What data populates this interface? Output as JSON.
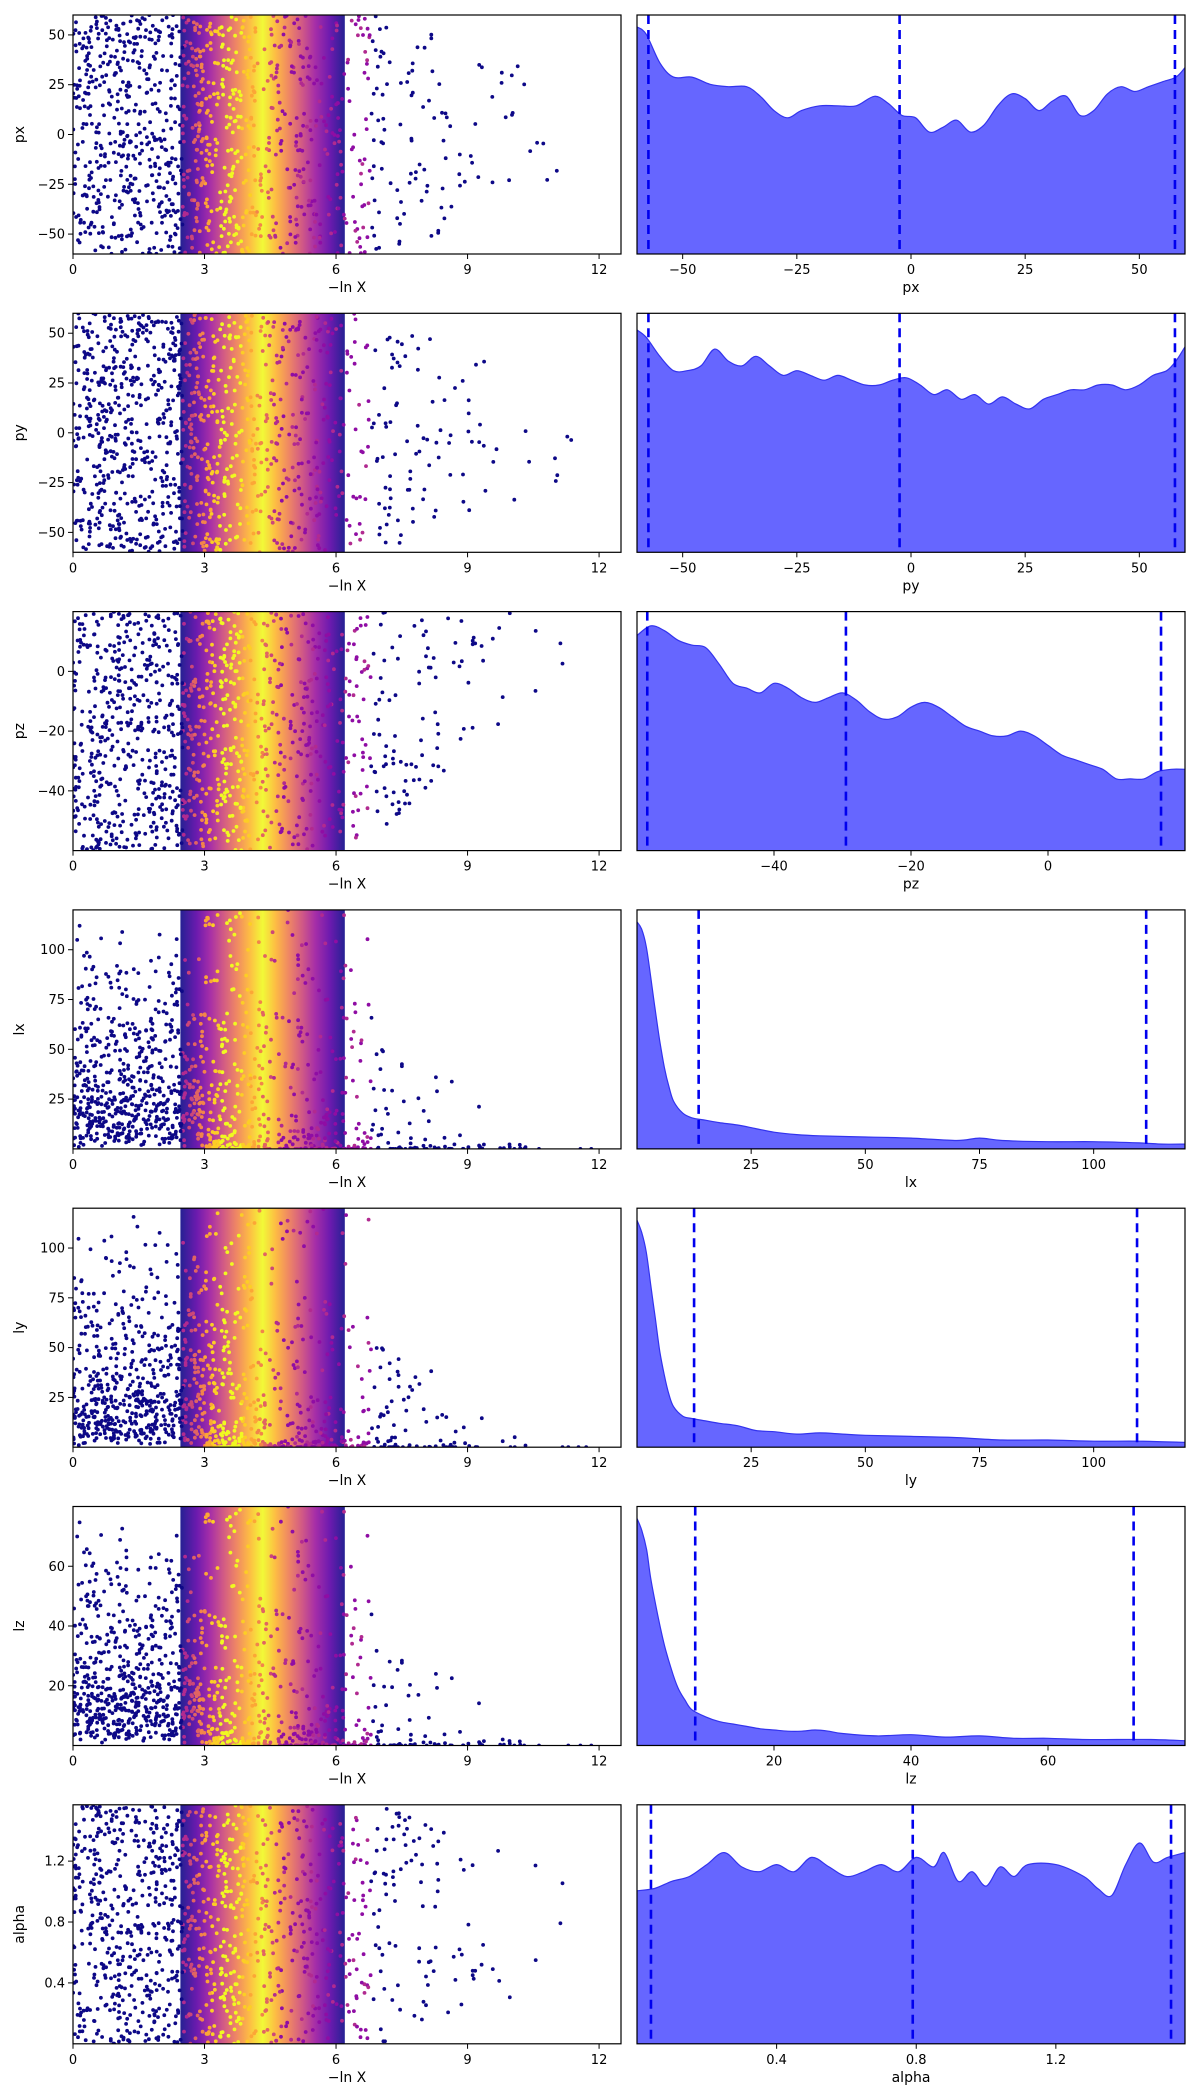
{
  "chart_data": [
    {
      "type": "trace_panel_row",
      "param": "px",
      "trace": {
        "xlabel": "−ln X",
        "ylabel": "px",
        "xlim": [
          0,
          12.5
        ],
        "ylim": [
          -60,
          60
        ],
        "xticks": [
          0,
          3,
          6,
          9,
          12
        ],
        "yticks": [
          -50,
          -25,
          0,
          25,
          50
        ]
      },
      "posterior": {
        "xlabel": "px",
        "xlim": [
          -60,
          60
        ],
        "xticks": [
          -50,
          -25,
          0,
          25,
          50
        ],
        "quantiles": [
          -57.5,
          -2.5,
          57.8
        ],
        "density": [
          [
            -60,
            0.95
          ],
          [
            -58,
            0.92
          ],
          [
            -55,
            0.8
          ],
          [
            -52,
            0.74
          ],
          [
            -48,
            0.74
          ],
          [
            -44,
            0.71
          ],
          [
            -40,
            0.7
          ],
          [
            -36,
            0.7
          ],
          [
            -33,
            0.66
          ],
          [
            -30,
            0.6
          ],
          [
            -27,
            0.57
          ],
          [
            -24,
            0.6
          ],
          [
            -20,
            0.62
          ],
          [
            -16,
            0.62
          ],
          [
            -12,
            0.62
          ],
          [
            -8,
            0.66
          ],
          [
            -5,
            0.63
          ],
          [
            -2,
            0.58
          ],
          [
            1,
            0.57
          ],
          [
            4,
            0.51
          ],
          [
            7,
            0.53
          ],
          [
            10,
            0.56
          ],
          [
            13,
            0.51
          ],
          [
            16,
            0.54
          ],
          [
            19,
            0.62
          ],
          [
            22,
            0.67
          ],
          [
            25,
            0.65
          ],
          [
            28,
            0.6
          ],
          [
            31,
            0.64
          ],
          [
            34,
            0.66
          ],
          [
            37,
            0.58
          ],
          [
            40,
            0.6
          ],
          [
            43,
            0.67
          ],
          [
            46,
            0.7
          ],
          [
            49,
            0.68
          ],
          [
            52,
            0.7
          ],
          [
            55,
            0.72
          ],
          [
            58,
            0.74
          ],
          [
            60,
            0.78
          ]
        ]
      }
    },
    {
      "type": "trace_panel_row",
      "param": "py",
      "trace": {
        "xlabel": "−ln X",
        "ylabel": "py",
        "xlim": [
          0,
          12.5
        ],
        "ylim": [
          -60,
          60
        ],
        "xticks": [
          0,
          3,
          6,
          9,
          12
        ],
        "yticks": [
          -50,
          -25,
          0,
          25,
          50
        ]
      },
      "posterior": {
        "xlabel": "py",
        "xlim": [
          -60,
          60
        ],
        "xticks": [
          -50,
          -25,
          0,
          25,
          50
        ],
        "quantiles": [
          -57.5,
          -2.5,
          57.8
        ],
        "density": [
          [
            -60,
            0.93
          ],
          [
            -58,
            0.9
          ],
          [
            -55,
            0.82
          ],
          [
            -52,
            0.76
          ],
          [
            -49,
            0.76
          ],
          [
            -46,
            0.78
          ],
          [
            -43,
            0.85
          ],
          [
            -40,
            0.8
          ],
          [
            -37,
            0.78
          ],
          [
            -34,
            0.82
          ],
          [
            -31,
            0.78
          ],
          [
            -28,
            0.74
          ],
          [
            -25,
            0.76
          ],
          [
            -22,
            0.74
          ],
          [
            -19,
            0.72
          ],
          [
            -16,
            0.74
          ],
          [
            -13,
            0.72
          ],
          [
            -10,
            0.7
          ],
          [
            -7,
            0.7
          ],
          [
            -4,
            0.72
          ],
          [
            -1,
            0.73
          ],
          [
            2,
            0.7
          ],
          [
            5,
            0.66
          ],
          [
            8,
            0.68
          ],
          [
            11,
            0.64
          ],
          [
            14,
            0.66
          ],
          [
            17,
            0.62
          ],
          [
            20,
            0.65
          ],
          [
            23,
            0.62
          ],
          [
            26,
            0.6
          ],
          [
            29,
            0.64
          ],
          [
            32,
            0.66
          ],
          [
            35,
            0.68
          ],
          [
            38,
            0.68
          ],
          [
            41,
            0.7
          ],
          [
            44,
            0.7
          ],
          [
            47,
            0.68
          ],
          [
            50,
            0.7
          ],
          [
            53,
            0.74
          ],
          [
            56,
            0.76
          ],
          [
            58,
            0.8
          ],
          [
            60,
            0.86
          ]
        ]
      }
    },
    {
      "type": "trace_panel_row",
      "param": "pz",
      "trace": {
        "xlabel": "−ln X",
        "ylabel": "pz",
        "xlim": [
          0,
          12.5
        ],
        "ylim": [
          -60,
          20
        ],
        "xticks": [
          0,
          3,
          6,
          9,
          12
        ],
        "yticks": [
          -40,
          -20,
          0
        ]
      },
      "posterior": {
        "xlabel": "pz",
        "xlim": [
          -60,
          20
        ],
        "xticks": [
          -40,
          -20,
          0
        ],
        "quantiles": [
          -58.5,
          -29.5,
          16.5
        ],
        "density": [
          [
            -60,
            0.9
          ],
          [
            -58,
            0.94
          ],
          [
            -56,
            0.92
          ],
          [
            -54,
            0.88
          ],
          [
            -52,
            0.86
          ],
          [
            -50,
            0.85
          ],
          [
            -48,
            0.78
          ],
          [
            -46,
            0.7
          ],
          [
            -44,
            0.68
          ],
          [
            -42,
            0.66
          ],
          [
            -40,
            0.7
          ],
          [
            -38,
            0.68
          ],
          [
            -36,
            0.64
          ],
          [
            -34,
            0.62
          ],
          [
            -32,
            0.64
          ],
          [
            -30,
            0.66
          ],
          [
            -28,
            0.63
          ],
          [
            -26,
            0.58
          ],
          [
            -24,
            0.55
          ],
          [
            -22,
            0.56
          ],
          [
            -20,
            0.6
          ],
          [
            -18,
            0.62
          ],
          [
            -16,
            0.6
          ],
          [
            -14,
            0.56
          ],
          [
            -12,
            0.52
          ],
          [
            -10,
            0.5
          ],
          [
            -8,
            0.48
          ],
          [
            -6,
            0.48
          ],
          [
            -4,
            0.5
          ],
          [
            -2,
            0.48
          ],
          [
            0,
            0.44
          ],
          [
            2,
            0.4
          ],
          [
            4,
            0.38
          ],
          [
            6,
            0.36
          ],
          [
            8,
            0.34
          ],
          [
            10,
            0.3
          ],
          [
            12,
            0.3
          ],
          [
            14,
            0.3
          ],
          [
            16,
            0.33
          ],
          [
            18,
            0.34
          ],
          [
            20,
            0.34
          ]
        ]
      }
    },
    {
      "type": "trace_panel_row",
      "param": "lx",
      "trace": {
        "xlabel": "−ln X",
        "ylabel": "lx",
        "xlim": [
          0,
          12.5
        ],
        "ylim": [
          0,
          120
        ],
        "xticks": [
          0,
          3,
          6,
          9,
          12
        ],
        "yticks": [
          25,
          50,
          75,
          100
        ]
      },
      "posterior": {
        "xlabel": "lx",
        "xlim": [
          0,
          120
        ],
        "xticks": [
          25,
          50,
          75,
          100
        ],
        "quantiles": [
          13.5,
          111.5
        ],
        "density": [
          [
            0,
            0.95
          ],
          [
            1,
            0.92
          ],
          [
            2,
            0.85
          ],
          [
            3,
            0.72
          ],
          [
            4,
            0.58
          ],
          [
            5,
            0.45
          ],
          [
            6,
            0.34
          ],
          [
            7,
            0.26
          ],
          [
            8,
            0.2
          ],
          [
            10,
            0.15
          ],
          [
            12,
            0.13
          ],
          [
            15,
            0.12
          ],
          [
            18,
            0.11
          ],
          [
            22,
            0.1
          ],
          [
            26,
            0.085
          ],
          [
            30,
            0.07
          ],
          [
            35,
            0.06
          ],
          [
            40,
            0.055
          ],
          [
            50,
            0.05
          ],
          [
            60,
            0.045
          ],
          [
            70,
            0.035
          ],
          [
            75,
            0.045
          ],
          [
            80,
            0.035
          ],
          [
            90,
            0.03
          ],
          [
            100,
            0.03
          ],
          [
            110,
            0.025
          ],
          [
            115,
            0.02
          ],
          [
            120,
            0.02
          ]
        ]
      }
    },
    {
      "type": "trace_panel_row",
      "param": "ly",
      "trace": {
        "xlabel": "−ln X",
        "ylabel": "ly",
        "xlim": [
          0,
          12.5
        ],
        "ylim": [
          0,
          120
        ],
        "xticks": [
          0,
          3,
          6,
          9,
          12
        ],
        "yticks": [
          25,
          50,
          75,
          100
        ]
      },
      "posterior": {
        "xlabel": "ly",
        "xlim": [
          0,
          120
        ],
        "xticks": [
          25,
          50,
          75,
          100
        ],
        "quantiles": [
          12.5,
          109.5
        ],
        "density": [
          [
            0,
            0.95
          ],
          [
            1,
            0.9
          ],
          [
            2,
            0.82
          ],
          [
            3,
            0.68
          ],
          [
            4,
            0.54
          ],
          [
            5,
            0.4
          ],
          [
            6,
            0.3
          ],
          [
            7,
            0.22
          ],
          [
            8,
            0.17
          ],
          [
            10,
            0.13
          ],
          [
            12,
            0.12
          ],
          [
            15,
            0.11
          ],
          [
            18,
            0.1
          ],
          [
            22,
            0.09
          ],
          [
            26,
            0.07
          ],
          [
            30,
            0.065
          ],
          [
            35,
            0.055
          ],
          [
            40,
            0.06
          ],
          [
            45,
            0.055
          ],
          [
            50,
            0.05
          ],
          [
            60,
            0.045
          ],
          [
            70,
            0.04
          ],
          [
            80,
            0.03
          ],
          [
            90,
            0.03
          ],
          [
            100,
            0.025
          ],
          [
            110,
            0.025
          ],
          [
            120,
            0.02
          ]
        ]
      }
    },
    {
      "type": "trace_panel_row",
      "param": "lz",
      "trace": {
        "xlabel": "−ln X",
        "ylabel": "lz",
        "xlim": [
          0,
          12.5
        ],
        "ylim": [
          0,
          80
        ],
        "xticks": [
          0,
          3,
          6,
          9,
          12
        ],
        "yticks": [
          20,
          40,
          60
        ]
      },
      "posterior": {
        "xlabel": "lz",
        "xlim": [
          0,
          80
        ],
        "xticks": [
          20,
          40,
          60
        ],
        "quantiles": [
          8.5,
          72.5
        ],
        "density": [
          [
            0,
            0.95
          ],
          [
            0.7,
            0.9
          ],
          [
            1.4,
            0.82
          ],
          [
            2,
            0.7
          ],
          [
            3,
            0.55
          ],
          [
            4,
            0.42
          ],
          [
            5,
            0.32
          ],
          [
            6,
            0.24
          ],
          [
            7,
            0.19
          ],
          [
            8,
            0.15
          ],
          [
            10,
            0.12
          ],
          [
            12,
            0.1
          ],
          [
            14,
            0.09
          ],
          [
            16,
            0.08
          ],
          [
            18,
            0.07
          ],
          [
            20,
            0.065
          ],
          [
            22,
            0.06
          ],
          [
            24,
            0.06
          ],
          [
            26,
            0.065
          ],
          [
            28,
            0.06
          ],
          [
            30,
            0.05
          ],
          [
            35,
            0.04
          ],
          [
            40,
            0.045
          ],
          [
            45,
            0.035
          ],
          [
            50,
            0.04
          ],
          [
            55,
            0.03
          ],
          [
            60,
            0.03
          ],
          [
            65,
            0.025
          ],
          [
            70,
            0.025
          ],
          [
            75,
            0.025
          ],
          [
            80,
            0.02
          ]
        ]
      }
    },
    {
      "type": "trace_panel_row",
      "param": "alpha",
      "trace": {
        "xlabel": "−ln X",
        "ylabel": "alpha",
        "xlim": [
          0,
          12.5
        ],
        "ylim": [
          0,
          1.57
        ],
        "xticks": [
          0,
          3,
          6,
          9,
          12
        ],
        "yticks": [
          0.4,
          0.8,
          1.2
        ]
      },
      "posterior": {
        "xlabel": "alpha",
        "xlim": [
          0,
          1.57
        ],
        "xticks": [
          0.4,
          0.8,
          1.2
        ],
        "quantiles": [
          0.04,
          0.79,
          1.53
        ],
        "density": [
          [
            0,
            0.64
          ],
          [
            0.05,
            0.65
          ],
          [
            0.1,
            0.68
          ],
          [
            0.15,
            0.7
          ],
          [
            0.2,
            0.75
          ],
          [
            0.25,
            0.8
          ],
          [
            0.3,
            0.74
          ],
          [
            0.35,
            0.72
          ],
          [
            0.4,
            0.75
          ],
          [
            0.45,
            0.72
          ],
          [
            0.5,
            0.78
          ],
          [
            0.55,
            0.74
          ],
          [
            0.6,
            0.7
          ],
          [
            0.65,
            0.72
          ],
          [
            0.7,
            0.75
          ],
          [
            0.75,
            0.72
          ],
          [
            0.8,
            0.78
          ],
          [
            0.85,
            0.74
          ],
          [
            0.88,
            0.8
          ],
          [
            0.92,
            0.68
          ],
          [
            0.96,
            0.72
          ],
          [
            1.0,
            0.66
          ],
          [
            1.04,
            0.74
          ],
          [
            1.08,
            0.7
          ],
          [
            1.12,
            0.75
          ],
          [
            1.2,
            0.75
          ],
          [
            1.28,
            0.7
          ],
          [
            1.32,
            0.65
          ],
          [
            1.36,
            0.62
          ],
          [
            1.4,
            0.75
          ],
          [
            1.44,
            0.84
          ],
          [
            1.48,
            0.76
          ],
          [
            1.52,
            0.78
          ],
          [
            1.57,
            0.8
          ]
        ]
      }
    }
  ]
}
